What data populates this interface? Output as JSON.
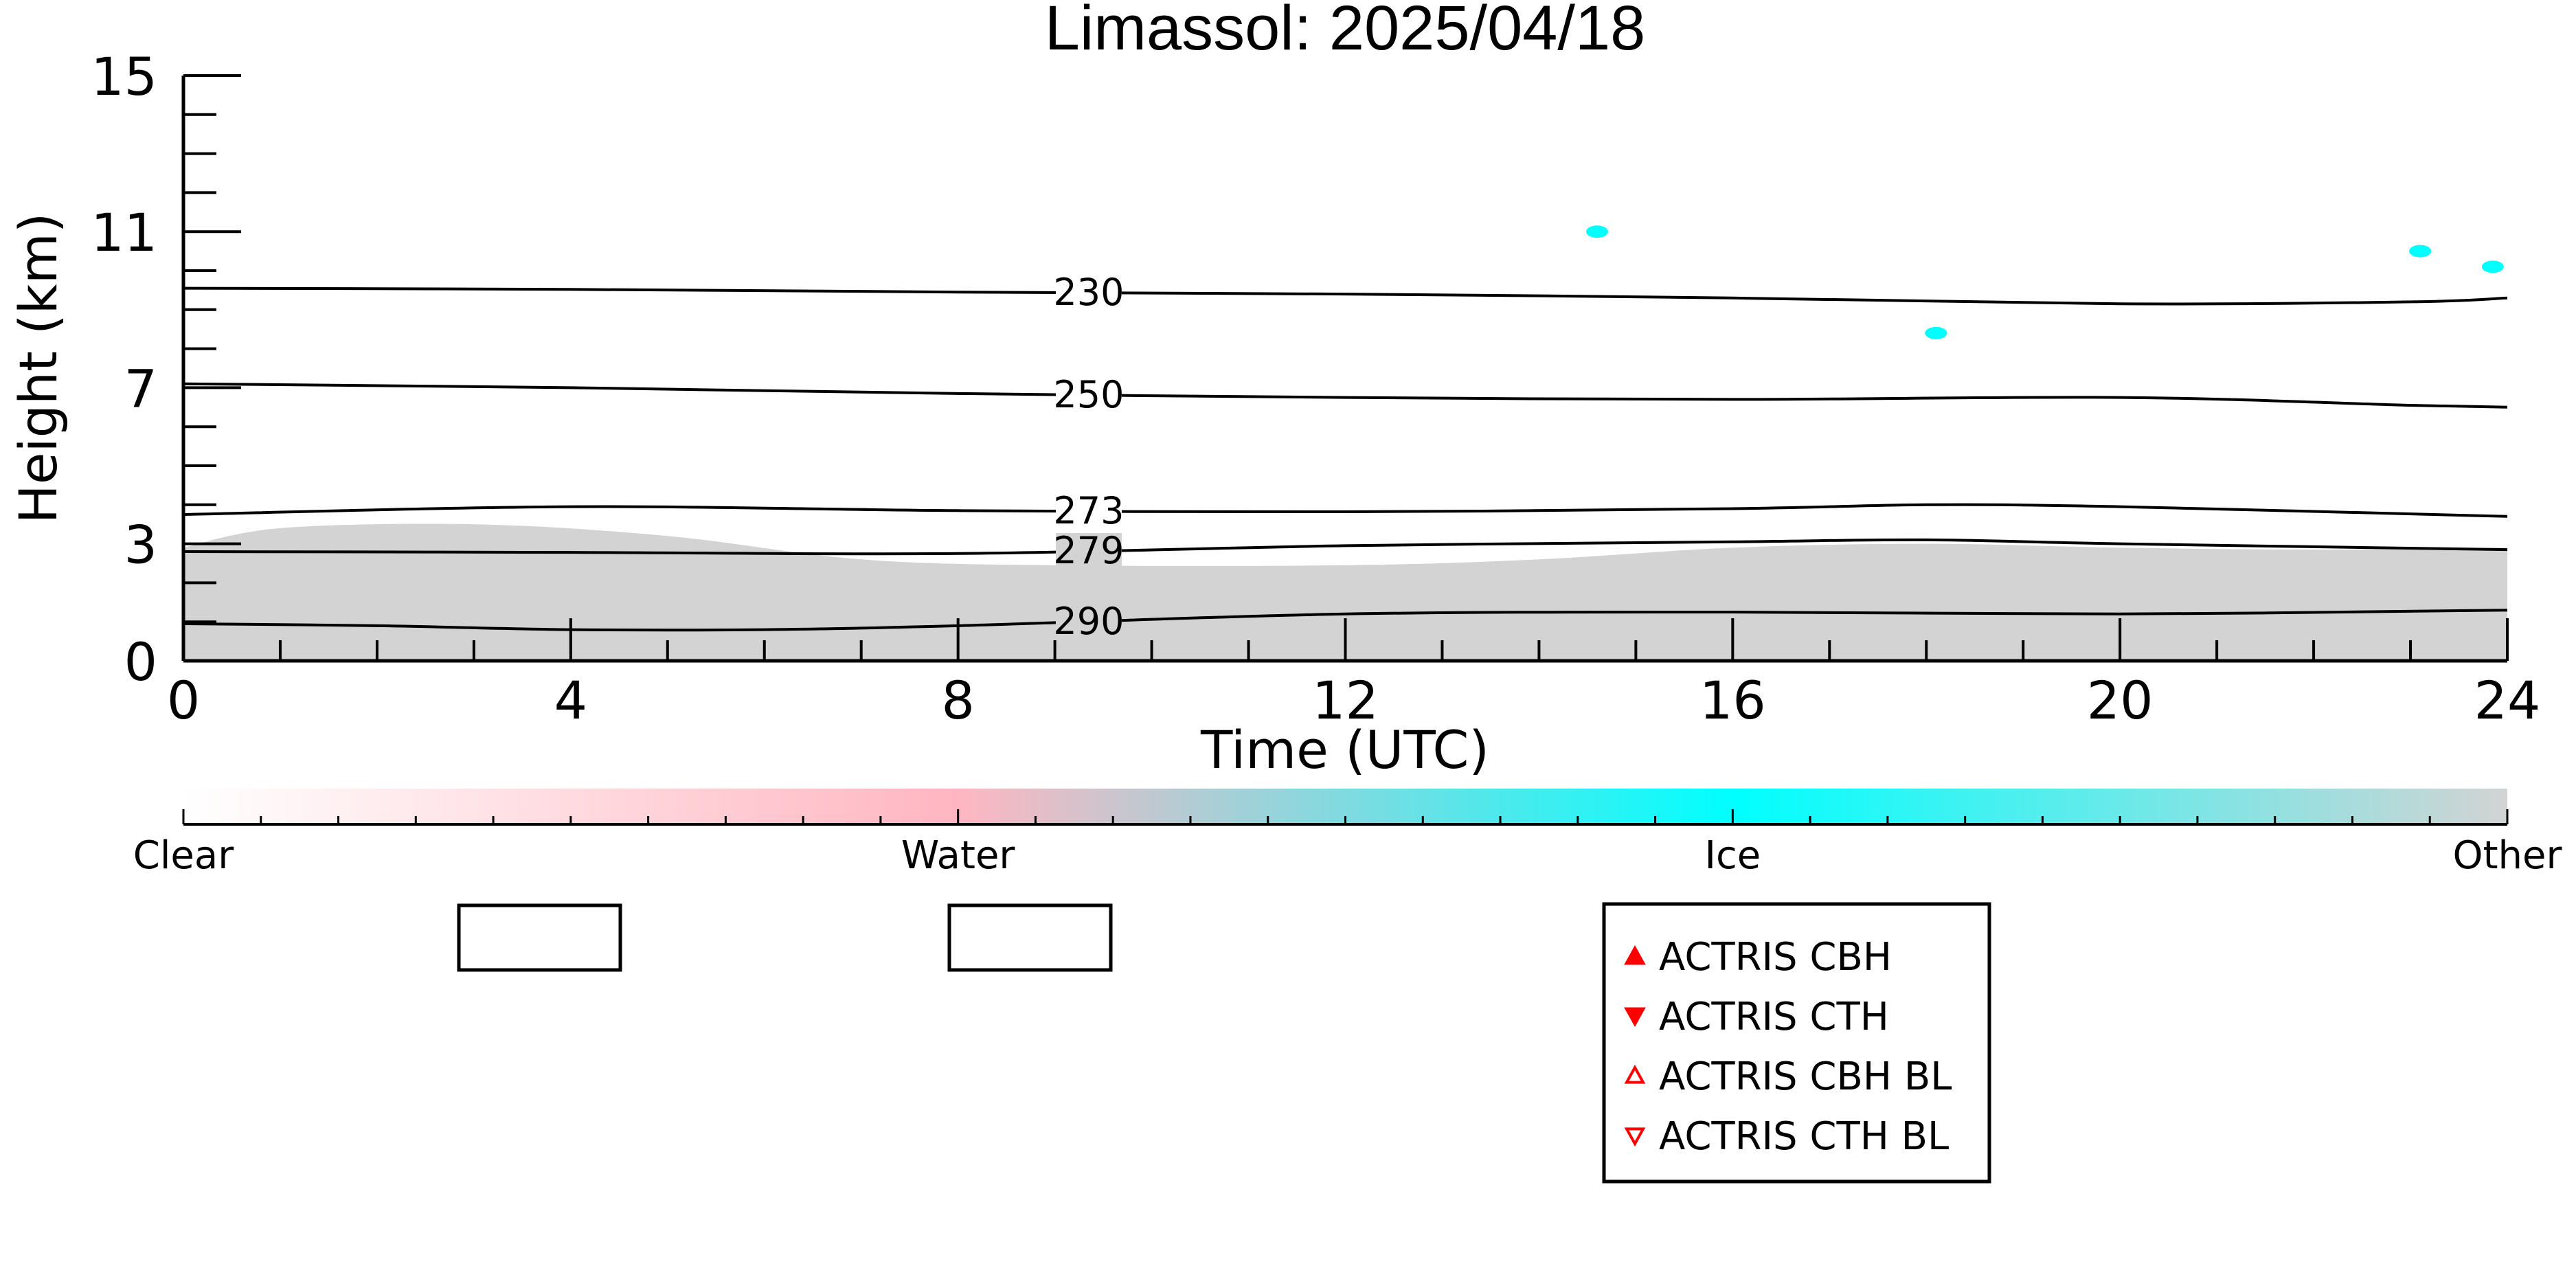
{
  "chart_data": {
    "type": "heatmap",
    "title": "Limassol: 2025/04/18",
    "xlabel": "Time (UTC)",
    "ylabel": "Height (km)",
    "xlim": [
      0,
      24
    ],
    "ylim": [
      0,
      15
    ],
    "x_ticks": [
      "0",
      "4",
      "8",
      "12",
      "16",
      "20",
      "24"
    ],
    "y_ticks": [
      "0",
      "3",
      "7",
      "11",
      "15"
    ],
    "x_tick_values": [
      0,
      4,
      8,
      12,
      16,
      20,
      24
    ],
    "y_tick_values": [
      0,
      3,
      7,
      11,
      15
    ],
    "grid": false,
    "isotherms": [
      {
        "label": "230",
        "points": [
          [
            0,
            9.55
          ],
          [
            4,
            9.52
          ],
          [
            8,
            9.45
          ],
          [
            12,
            9.4
          ],
          [
            16,
            9.3
          ],
          [
            20,
            9.15
          ],
          [
            23,
            9.2
          ],
          [
            24,
            9.3
          ]
        ]
      },
      {
        "label": "250",
        "points": [
          [
            0,
            7.1
          ],
          [
            4,
            7.0
          ],
          [
            8,
            6.85
          ],
          [
            12,
            6.75
          ],
          [
            16,
            6.7
          ],
          [
            20,
            6.75
          ],
          [
            23,
            6.55
          ],
          [
            24,
            6.5
          ]
        ]
      },
      {
        "label": "273",
        "points": [
          [
            0,
            3.75
          ],
          [
            4,
            3.95
          ],
          [
            8,
            3.85
          ],
          [
            12,
            3.82
          ],
          [
            16,
            3.9
          ],
          [
            18,
            4.0
          ],
          [
            20,
            3.95
          ],
          [
            24,
            3.7
          ]
        ]
      },
      {
        "label": "279",
        "points": [
          [
            0,
            2.8
          ],
          [
            4,
            2.78
          ],
          [
            8,
            2.75
          ],
          [
            12,
            2.95
          ],
          [
            16,
            3.05
          ],
          [
            18,
            3.1
          ],
          [
            20,
            3.0
          ],
          [
            24,
            2.85
          ]
        ]
      },
      {
        "label": "290",
        "points": [
          [
            0,
            0.95
          ],
          [
            2,
            0.9
          ],
          [
            4,
            0.8
          ],
          [
            6,
            0.8
          ],
          [
            8,
            0.9
          ],
          [
            12,
            1.2
          ],
          [
            16,
            1.25
          ],
          [
            20,
            1.2
          ],
          [
            24,
            1.3
          ]
        ]
      }
    ],
    "classification_regions": [
      {
        "class": "Other",
        "points": [
          [
            0,
            2.9
          ],
          [
            1,
            3.4
          ],
          [
            3,
            3.5
          ],
          [
            5,
            3.2
          ],
          [
            7,
            2.6
          ],
          [
            9,
            2.45
          ],
          [
            12,
            2.45
          ],
          [
            14,
            2.6
          ],
          [
            16,
            2.9
          ],
          [
            18,
            3.0
          ],
          [
            20,
            2.9
          ],
          [
            22,
            2.85
          ],
          [
            24,
            2.9
          ]
        ]
      }
    ],
    "ice_patches": [
      {
        "x": 14.6,
        "y": 11.0
      },
      {
        "x": 18.1,
        "y": 8.4
      },
      {
        "x": 23.1,
        "y": 10.5
      },
      {
        "x": 23.85,
        "y": 10.1
      }
    ],
    "colorbar": {
      "labels": [
        "Clear",
        "Water",
        "Ice",
        "Other"
      ],
      "stops": [
        {
          "pos": 0.0,
          "color": "#ffffff"
        },
        {
          "pos": 0.333,
          "color": "#ffb6c1"
        },
        {
          "pos": 0.667,
          "color": "#00ffff"
        },
        {
          "pos": 1.0,
          "color": "#d3d3d3"
        }
      ]
    },
    "legend": {
      "placement": "bottom-center",
      "entries": [
        {
          "label": "ACTRIS CBH",
          "marker": "triangle-up-filled",
          "color": "#ff0000"
        },
        {
          "label": "ACTRIS CTH",
          "marker": "triangle-down-filled",
          "color": "#ff0000"
        },
        {
          "label": "ACTRIS CBH BL",
          "marker": "triangle-up-open",
          "color": "#ff0000"
        },
        {
          "label": "ACTRIS CTH BL",
          "marker": "triangle-down-open",
          "color": "#ff0000"
        }
      ]
    },
    "colors": {
      "other": "#d3d3d3",
      "ice": "#00ffff",
      "water": "#ffb6c1",
      "axis": "#000000"
    }
  }
}
